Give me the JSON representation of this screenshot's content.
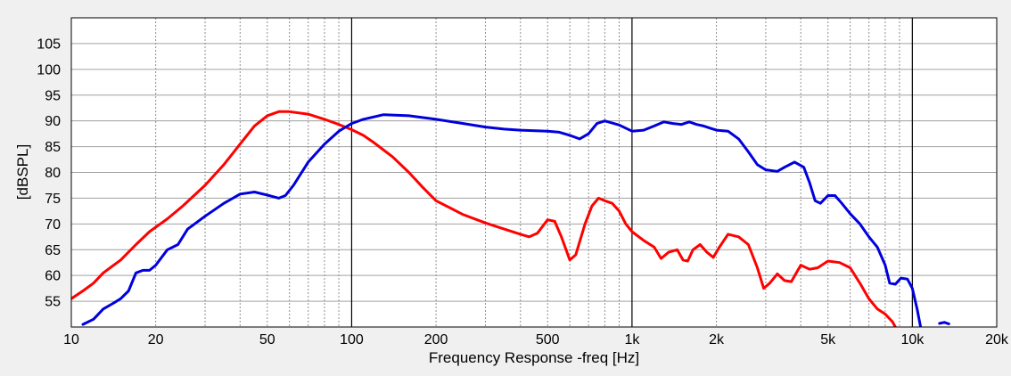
{
  "chart_data": {
    "type": "line",
    "title": "",
    "xlabel": "Frequency Response -freq [Hz]",
    "ylabel": "[dBSPL]",
    "x_scale": "log",
    "xlim": [
      10,
      20000
    ],
    "ylim": [
      50,
      110
    ],
    "grid": true,
    "x_ticks": [
      {
        "value": 10,
        "label": "10"
      },
      {
        "value": 20,
        "label": "20"
      },
      {
        "value": 50,
        "label": "50"
      },
      {
        "value": 100,
        "label": "100"
      },
      {
        "value": 200,
        "label": "200"
      },
      {
        "value": 500,
        "label": "500"
      },
      {
        "value": 1000,
        "label": "1k"
      },
      {
        "value": 2000,
        "label": "2k"
      },
      {
        "value": 5000,
        "label": "5k"
      },
      {
        "value": 10000,
        "label": "10k"
      },
      {
        "value": 20000,
        "label": "20k"
      }
    ],
    "y_ticks": [
      55,
      60,
      65,
      70,
      75,
      80,
      85,
      90,
      95,
      100,
      105
    ],
    "series": [
      {
        "color": "#ff0000",
        "points": [
          [
            10,
            55.5
          ],
          [
            11,
            57
          ],
          [
            12,
            58.5
          ],
          [
            13,
            60.5
          ],
          [
            15,
            63
          ],
          [
            17,
            66
          ],
          [
            19,
            68.5
          ],
          [
            22,
            71
          ],
          [
            25,
            73.5
          ],
          [
            30,
            77.5
          ],
          [
            35,
            81.5
          ],
          [
            40,
            85.5
          ],
          [
            45,
            89
          ],
          [
            50,
            91
          ],
          [
            55,
            91.8
          ],
          [
            60,
            91.8
          ],
          [
            70,
            91.3
          ],
          [
            80,
            90.3
          ],
          [
            90,
            89.3
          ],
          [
            100,
            88.3
          ],
          [
            110,
            87.2
          ],
          [
            120,
            85.8
          ],
          [
            140,
            83
          ],
          [
            160,
            80
          ],
          [
            180,
            77
          ],
          [
            200,
            74.5
          ],
          [
            250,
            71.8
          ],
          [
            300,
            70.2
          ],
          [
            350,
            69
          ],
          [
            400,
            68
          ],
          [
            430,
            67.5
          ],
          [
            460,
            68.2
          ],
          [
            500,
            70.8
          ],
          [
            530,
            70.5
          ],
          [
            560,
            67.5
          ],
          [
            600,
            63
          ],
          [
            630,
            64
          ],
          [
            680,
            70
          ],
          [
            720,
            73.5
          ],
          [
            760,
            75
          ],
          [
            800,
            74.5
          ],
          [
            850,
            74
          ],
          [
            900,
            72.5
          ],
          [
            950,
            70
          ],
          [
            1000,
            68.5
          ],
          [
            1100,
            66.8
          ],
          [
            1200,
            65.5
          ],
          [
            1270,
            63.3
          ],
          [
            1350,
            64.5
          ],
          [
            1450,
            65
          ],
          [
            1520,
            63
          ],
          [
            1580,
            62.8
          ],
          [
            1650,
            65
          ],
          [
            1750,
            66
          ],
          [
            1850,
            64.5
          ],
          [
            1950,
            63.5
          ],
          [
            2050,
            65.5
          ],
          [
            2200,
            68
          ],
          [
            2400,
            67.5
          ],
          [
            2600,
            66
          ],
          [
            2800,
            61.5
          ],
          [
            2950,
            57.5
          ],
          [
            3100,
            58.5
          ],
          [
            3300,
            60.3
          ],
          [
            3500,
            59
          ],
          [
            3700,
            58.8
          ],
          [
            4000,
            62
          ],
          [
            4300,
            61.2
          ],
          [
            4600,
            61.5
          ],
          [
            5000,
            62.8
          ],
          [
            5500,
            62.5
          ],
          [
            6000,
            61.5
          ],
          [
            6500,
            58.5
          ],
          [
            7000,
            55.5
          ],
          [
            7500,
            53.5
          ],
          [
            8000,
            52.5
          ],
          [
            8500,
            51
          ],
          [
            8700,
            50
          ]
        ]
      },
      {
        "color": "#0000dd",
        "points": [
          [
            11,
            50.5
          ],
          [
            12,
            51.5
          ],
          [
            13,
            53.5
          ],
          [
            14,
            54.5
          ],
          [
            15,
            55.5
          ],
          [
            16,
            57
          ],
          [
            17,
            60.5
          ],
          [
            18,
            61
          ],
          [
            19,
            61
          ],
          [
            20,
            62
          ],
          [
            22,
            65
          ],
          [
            24,
            66
          ],
          [
            26,
            69
          ],
          [
            30,
            71.5
          ],
          [
            35,
            74
          ],
          [
            40,
            75.8
          ],
          [
            45,
            76.2
          ],
          [
            50,
            75.6
          ],
          [
            55,
            75
          ],
          [
            58,
            75.5
          ],
          [
            62,
            77.5
          ],
          [
            70,
            82
          ],
          [
            80,
            85.5
          ],
          [
            90,
            88
          ],
          [
            100,
            89.5
          ],
          [
            110,
            90.3
          ],
          [
            130,
            91.2
          ],
          [
            160,
            91
          ],
          [
            200,
            90.3
          ],
          [
            250,
            89.5
          ],
          [
            300,
            88.8
          ],
          [
            350,
            88.4
          ],
          [
            400,
            88.2
          ],
          [
            500,
            88
          ],
          [
            550,
            87.8
          ],
          [
            600,
            87.2
          ],
          [
            650,
            86.5
          ],
          [
            700,
            87.5
          ],
          [
            750,
            89.5
          ],
          [
            800,
            90
          ],
          [
            900,
            89.2
          ],
          [
            1000,
            88
          ],
          [
            1100,
            88.2
          ],
          [
            1200,
            89
          ],
          [
            1300,
            89.8
          ],
          [
            1400,
            89.5
          ],
          [
            1500,
            89.3
          ],
          [
            1600,
            89.8
          ],
          [
            1700,
            89.3
          ],
          [
            1800,
            89
          ],
          [
            1900,
            88.6
          ],
          [
            2000,
            88.2
          ],
          [
            2200,
            88
          ],
          [
            2400,
            86.5
          ],
          [
            2600,
            84
          ],
          [
            2800,
            81.5
          ],
          [
            3000,
            80.5
          ],
          [
            3300,
            80.2
          ],
          [
            3500,
            81
          ],
          [
            3800,
            82
          ],
          [
            4100,
            81
          ],
          [
            4300,
            78
          ],
          [
            4500,
            74.5
          ],
          [
            4700,
            74
          ],
          [
            5000,
            75.5
          ],
          [
            5300,
            75.5
          ],
          [
            5600,
            74
          ],
          [
            6000,
            72
          ],
          [
            6500,
            70
          ],
          [
            7000,
            67.5
          ],
          [
            7500,
            65.5
          ],
          [
            8000,
            62
          ],
          [
            8300,
            58.5
          ],
          [
            8700,
            58.3
          ],
          [
            9100,
            59.5
          ],
          [
            9600,
            59.3
          ],
          [
            10000,
            57.5
          ],
          [
            10400,
            53.5
          ],
          [
            10700,
            50
          ]
        ]
      },
      {
        "color": "#0000dd",
        "points": [
          [
            12500,
            50.7
          ],
          [
            13000,
            50.9
          ],
          [
            13500,
            50.6
          ]
        ]
      }
    ]
  }
}
